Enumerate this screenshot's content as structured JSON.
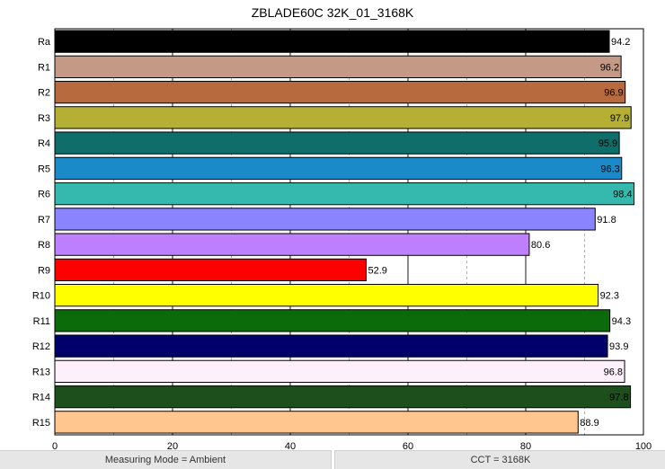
{
  "chart_data": {
    "type": "bar",
    "orientation": "horizontal",
    "title": "ZBLADE60C 32K_01_3168K",
    "categories": [
      "Ra",
      "R1",
      "R2",
      "R3",
      "R4",
      "R5",
      "R6",
      "R7",
      "R8",
      "R9",
      "R10",
      "R11",
      "R12",
      "R13",
      "R14",
      "R15"
    ],
    "values": [
      94.2,
      96.2,
      96.9,
      97.9,
      95.9,
      96.3,
      98.4,
      91.8,
      80.6,
      52.9,
      92.3,
      94.3,
      93.9,
      96.8,
      97.8,
      88.9
    ],
    "colors": [
      "#000000",
      "#c49a86",
      "#b86a3f",
      "#b5b033",
      "#0f6e6a",
      "#1a8ac9",
      "#35b8ad",
      "#8a85ff",
      "#bf80ff",
      "#ff0000",
      "#ffff00",
      "#0b6b0b",
      "#00006b",
      "#fdf0fb",
      "#1c4f1c",
      "#ffc690"
    ],
    "xlim": [
      0,
      100
    ],
    "xticks": [
      0,
      20,
      40,
      60,
      80,
      100
    ],
    "grid": "vertical major solid, minor dashed",
    "xlabel": "",
    "ylabel": ""
  },
  "status": {
    "measuring_mode": "Measuring Mode = Ambient",
    "cct": "CCT = 3168K"
  }
}
